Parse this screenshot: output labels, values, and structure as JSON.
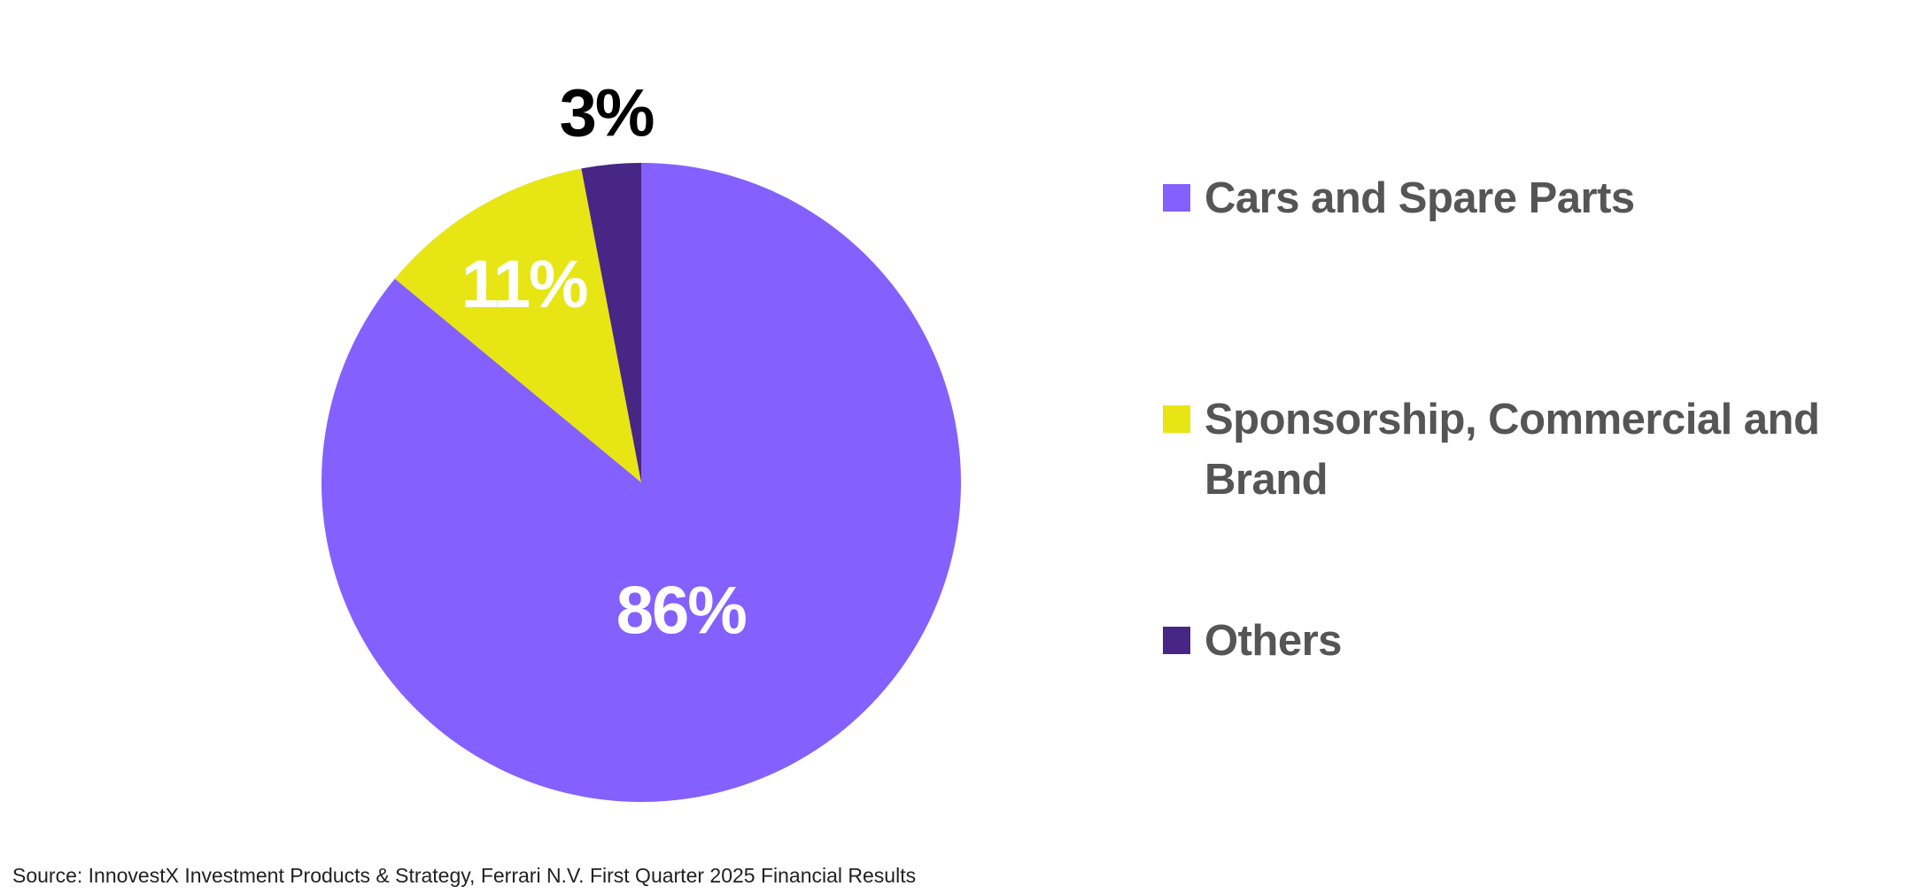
{
  "chart_data": {
    "type": "pie",
    "title": "",
    "start_angle_deg": 0,
    "direction": "clockwise",
    "slices": [
      {
        "label": "Cars and Spare Parts",
        "value": 86,
        "display": "86%",
        "color": "#8460FF",
        "label_color": "#FFFFFF"
      },
      {
        "label": "Sponsorship, Commercial and Brand",
        "value": 11,
        "display": "11%",
        "color": "#E8E514",
        "label_color": "#FFFFFF"
      },
      {
        "label": "Others",
        "value": 3,
        "display": "3%",
        "color": "#482686",
        "label_color": "#000000"
      }
    ],
    "legend_position": "right"
  },
  "source_text": "Source: InnovestX Investment Products & Strategy, Ferrari N.V. First Quarter 2025 Financial Results"
}
